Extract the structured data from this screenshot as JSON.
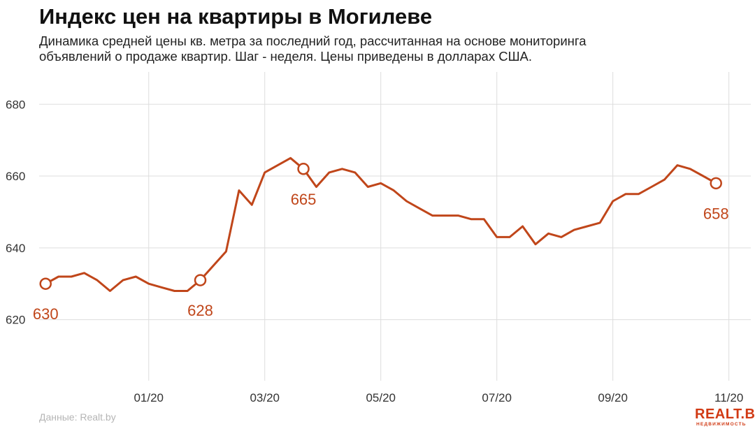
{
  "title": "Индекс цен на квартиры в Могилеве",
  "subtitle_lines": [
    "Динамика средней цены кв. метра за последний год, рассчитанная на основе мониторинга",
    "объявлений о продаже квартир. Шаг - неделя. Цены приведены в долларах США."
  ],
  "source": "Данные: Realt.by",
  "logo": {
    "main": "REALT.BY",
    "sub": "НЕДВИЖИМОСТЬ"
  },
  "colors": {
    "line": "#c0461a",
    "grid": "#dddddd",
    "axis_text": "#333333",
    "source": "#b5b5b5",
    "logo": "#d13a14"
  },
  "chart_data": {
    "type": "line",
    "title": "Индекс цен на квартиры в Могилеве",
    "xlabel": "",
    "ylabel": "",
    "x_unit": "week",
    "x_ticks": [
      {
        "x": 8,
        "label": "01/20"
      },
      {
        "x": 17,
        "label": "03/20"
      },
      {
        "x": 26,
        "label": "05/20"
      },
      {
        "x": 35,
        "label": "07/20"
      },
      {
        "x": 44,
        "label": "09/20"
      },
      {
        "x": 53,
        "label": "11/20"
      }
    ],
    "y_ticks": [
      620,
      640,
      660,
      680
    ],
    "xlim": [
      -0.5,
      54.7
    ],
    "ylim": [
      603,
      689
    ],
    "grid": true,
    "legend": "none",
    "series": [
      {
        "values": [
          630,
          632,
          632,
          633,
          631,
          628,
          631,
          632,
          630,
          629,
          628,
          628,
          631,
          635,
          639,
          656,
          652,
          661,
          663,
          665,
          662,
          657,
          661,
          662,
          661,
          657,
          658,
          656,
          653,
          651,
          649,
          649,
          649,
          648,
          648,
          643,
          643,
          646,
          641,
          644,
          643,
          645,
          646,
          647,
          653,
          655,
          655,
          657,
          659,
          663,
          662,
          660,
          658
        ]
      }
    ],
    "annotations": [
      {
        "index": 0,
        "label": "630",
        "position": "below"
      },
      {
        "index": 12,
        "label": "628",
        "position": "below"
      },
      {
        "index": 20,
        "label": "665",
        "position": "below"
      },
      {
        "index": 54,
        "label": "658",
        "position": "below"
      }
    ]
  }
}
